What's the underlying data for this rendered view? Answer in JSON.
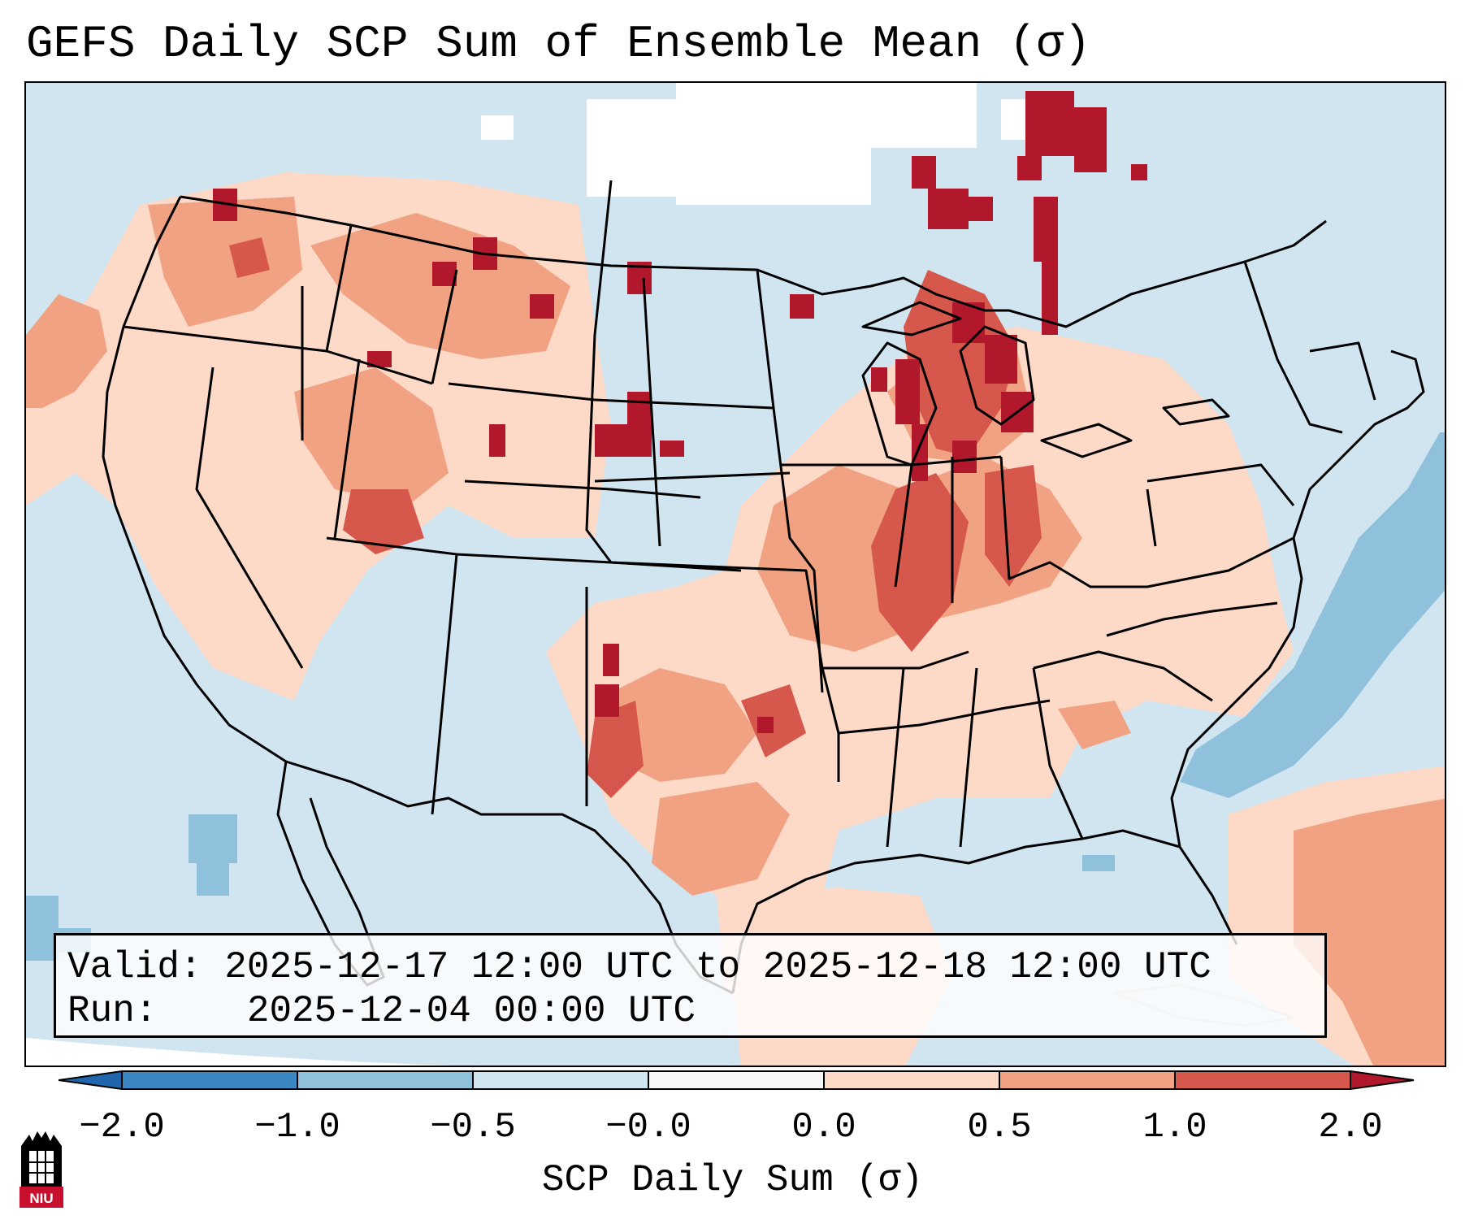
{
  "title": "GEFS Daily SCP Sum of Ensemble Mean (σ)",
  "info": {
    "valid_label": "Valid:",
    "valid_value": "2025-12-17 12:00 UTC to 2025-12-18 12:00 UTC",
    "run_label": "Run:",
    "run_value": "2025-12-04 00:00 UTC"
  },
  "colorbar": {
    "label": "SCP Daily Sum (σ)",
    "ticks": [
      "−2.0",
      "−1.0",
      "−0.5",
      "−0.0",
      "0.0",
      "0.5",
      "1.0",
      "2.0"
    ],
    "colors": [
      "#3b87c4",
      "#8fc1dd",
      "#d1e5f0",
      "#f7f7f7",
      "#fdd9c7",
      "#f1a282",
      "#d6574b"
    ],
    "under_color": "#2166ac",
    "over_color": "#b2182b"
  },
  "map_colors": {
    "ocean_blue": "#d1e5f0",
    "deep_blue": "#8fc1dd",
    "light_red": "#fdd9c7",
    "mid_red": "#f1a282",
    "strong_red": "#d6574b",
    "dark_red": "#b2182b",
    "white": "#ffffff"
  },
  "logo": {
    "text": "NIU",
    "color": "#c8102e"
  }
}
